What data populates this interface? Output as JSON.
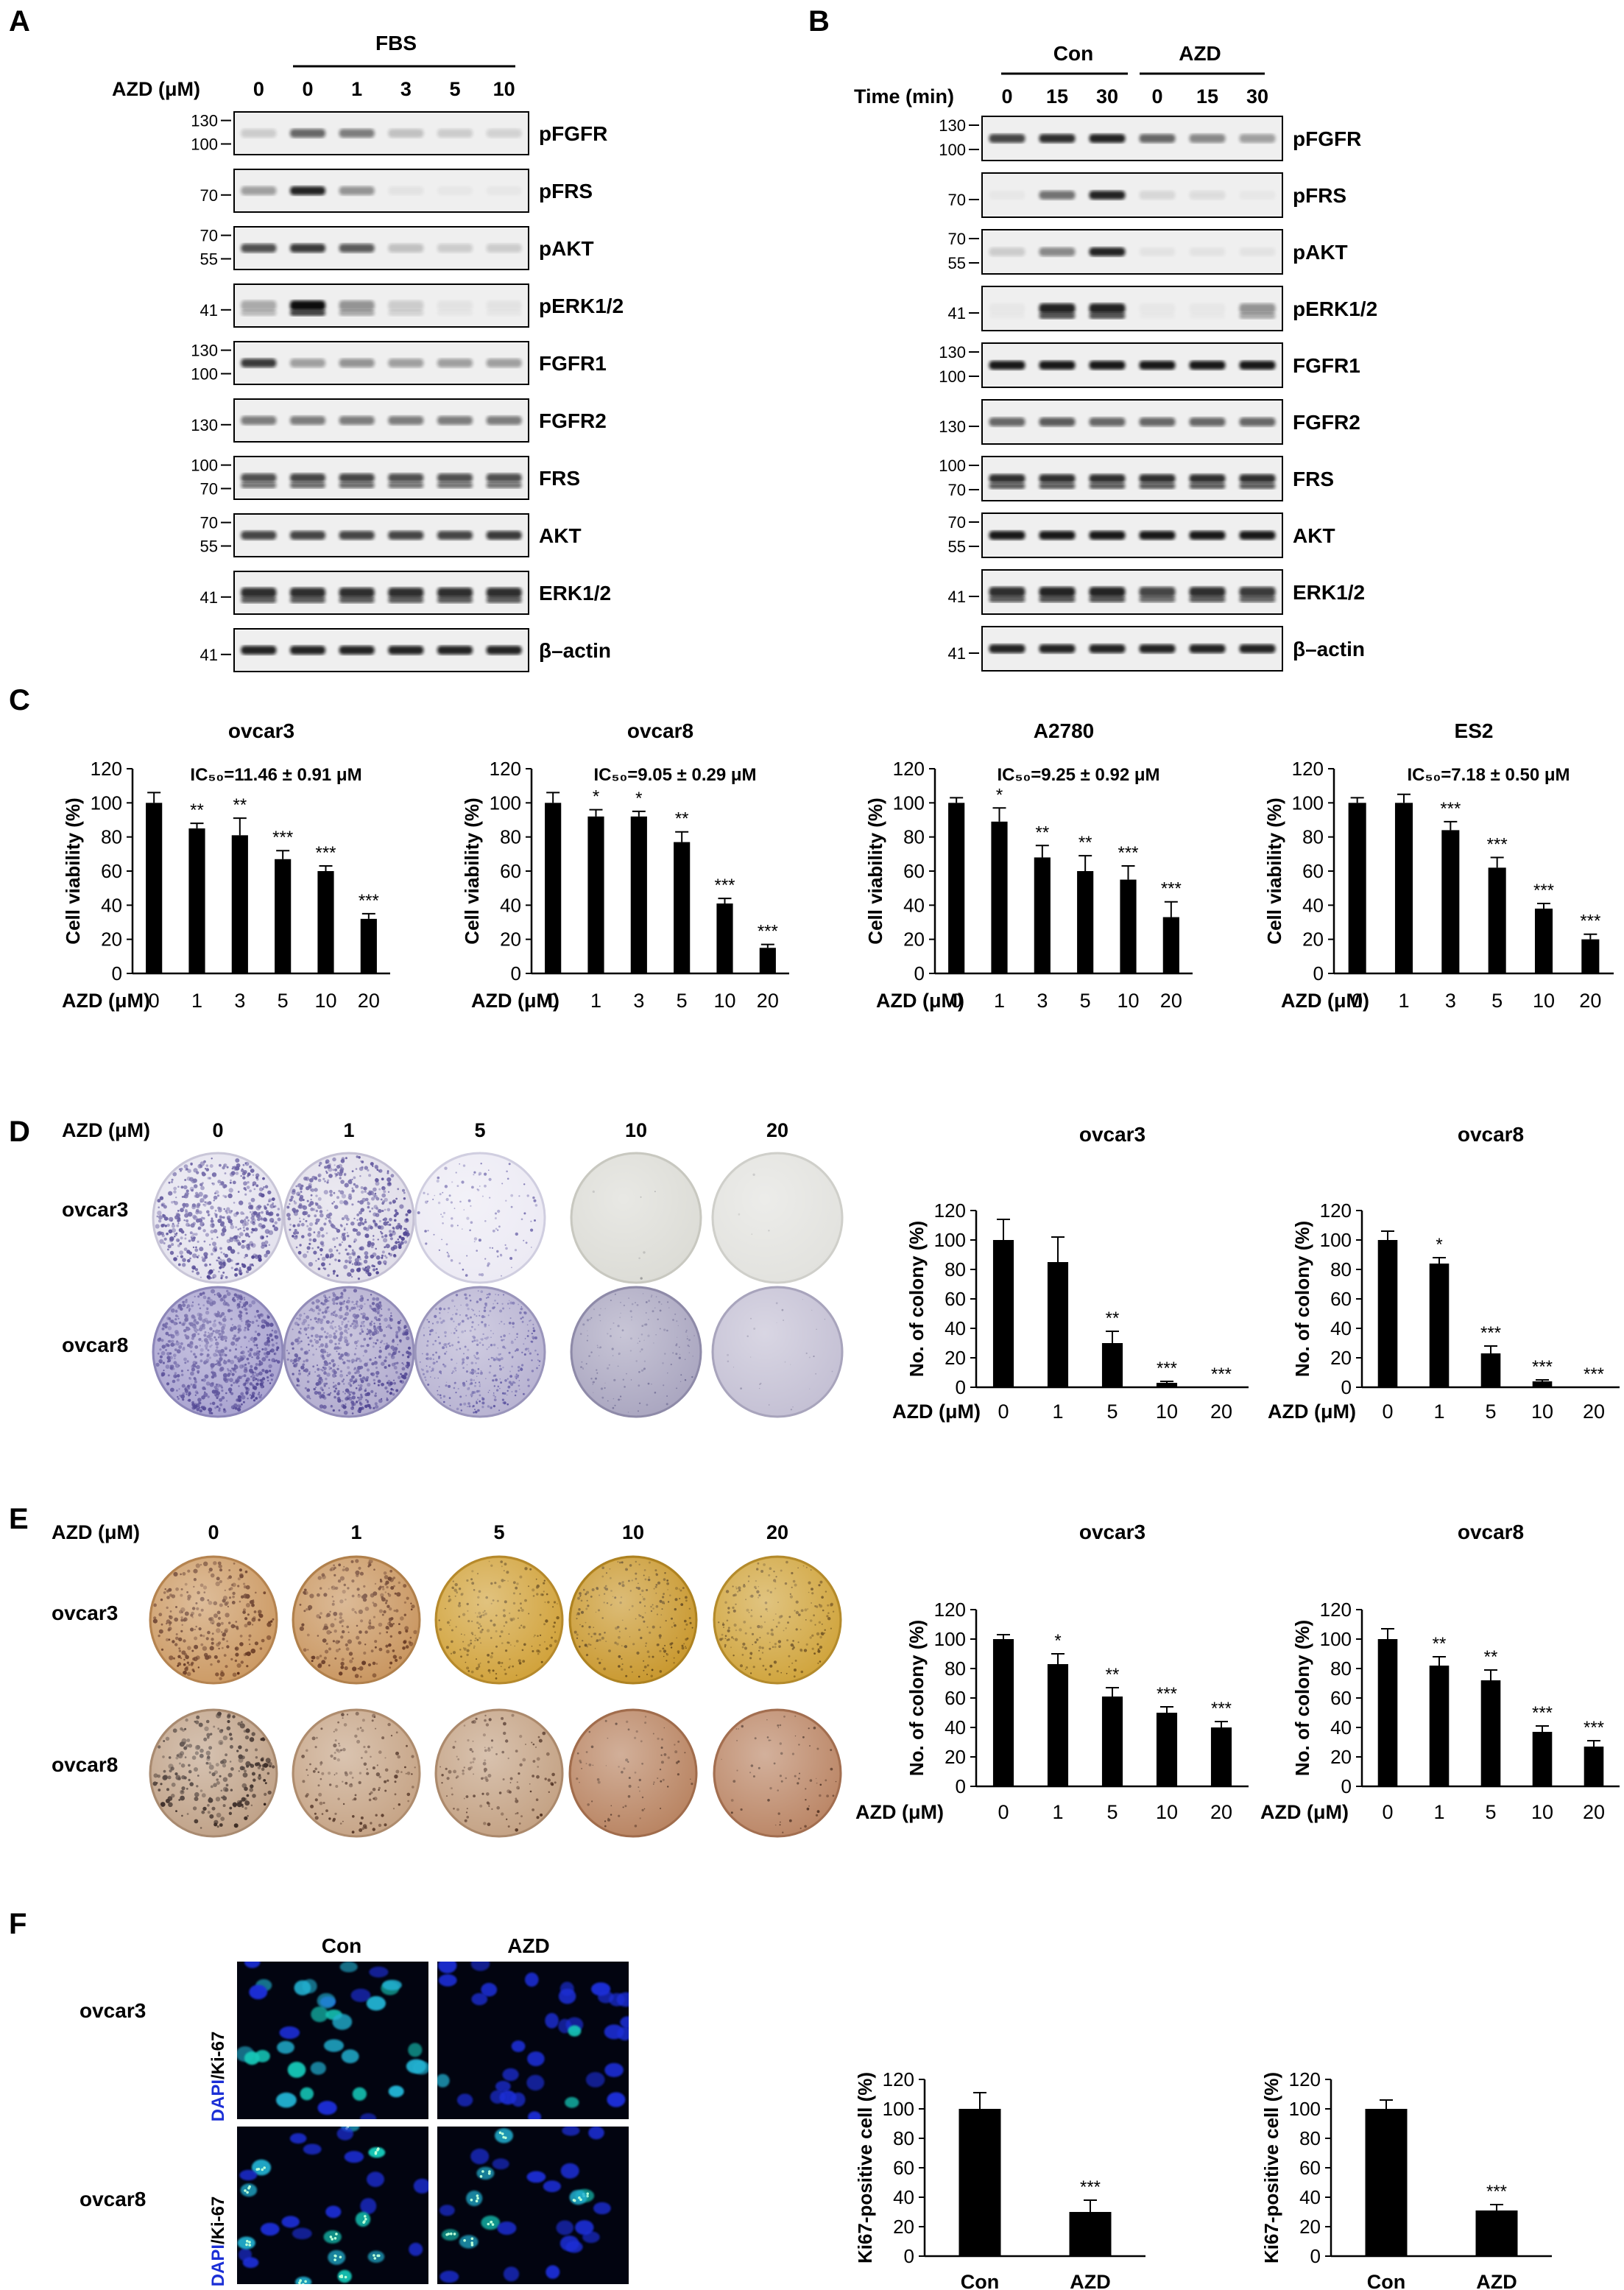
{
  "panel_letters": [
    "A",
    "B",
    "C",
    "D",
    "E",
    "F"
  ],
  "colors": {
    "ink": "#000000",
    "blot_bg": "#eeeeee",
    "band": "#1a1a1a",
    "dapi": "#1b2fd6",
    "ki67": "#18c8a8",
    "crystal": "#6a5ea8",
    "agar": "#c9975e"
  },
  "icons": {
    "blot": "western-blot-band-icon",
    "plate": "culture-dish-icon",
    "microscopy": "fluorescence-image-icon"
  },
  "panelA": {
    "fbs_label": "FBS",
    "azd_label": "AZD (μM)",
    "lanes": [
      "0",
      "0",
      "1",
      "3",
      "5",
      "10"
    ],
    "blots": [
      {
        "name": "pFGFR",
        "markers": [
          "130",
          "100"
        ]
      },
      {
        "name": "pFRS",
        "markers": [
          "70"
        ]
      },
      {
        "name": "pAKT",
        "markers": [
          "70",
          "55"
        ]
      },
      {
        "name": "pERK1/2",
        "markers": [
          "41"
        ]
      },
      {
        "name": "FGFR1",
        "markers": [
          "130",
          "100"
        ]
      },
      {
        "name": "FGFR2",
        "markers": [
          "130"
        ]
      },
      {
        "name": "FRS",
        "markers": [
          "100",
          "70"
        ]
      },
      {
        "name": "AKT",
        "markers": [
          "70",
          "55"
        ]
      },
      {
        "name": "ERK1/2",
        "markers": [
          "41"
        ]
      },
      {
        "name": "β–actin",
        "markers": [
          "41"
        ]
      }
    ]
  },
  "panelB": {
    "groups": [
      "Con",
      "AZD"
    ],
    "time_label": "Time (min)",
    "lanes": [
      "0",
      "15",
      "30",
      "0",
      "15",
      "30"
    ],
    "blots": [
      {
        "name": "pFGFR",
        "markers": [
          "130",
          "100"
        ]
      },
      {
        "name": "pFRS",
        "markers": [
          "70"
        ]
      },
      {
        "name": "pAKT",
        "markers": [
          "70",
          "55"
        ]
      },
      {
        "name": "pERK1/2",
        "markers": [
          "41"
        ]
      },
      {
        "name": "FGFR1",
        "markers": [
          "130",
          "100"
        ]
      },
      {
        "name": "FGFR2",
        "markers": [
          "130"
        ]
      },
      {
        "name": "FRS",
        "markers": [
          "100",
          "70"
        ]
      },
      {
        "name": "AKT",
        "markers": [
          "70",
          "55"
        ]
      },
      {
        "name": "ERK1/2",
        "markers": [
          "41"
        ]
      },
      {
        "name": "β–actin",
        "markers": [
          "41"
        ]
      }
    ]
  },
  "panelD": {
    "azd_label": "AZD (μM)",
    "doses": [
      "0",
      "1",
      "5",
      "10",
      "20"
    ],
    "rows": [
      "ovcar3",
      "ovcar8"
    ]
  },
  "panelE": {
    "azd_label": "AZD (μM)",
    "doses": [
      "0",
      "1",
      "5",
      "10",
      "20"
    ],
    "rows": [
      "ovcar3",
      "ovcar8"
    ]
  },
  "panelF": {
    "conditions": [
      "Con",
      "AZD"
    ],
    "rows": [
      "ovcar3",
      "ovcar8"
    ],
    "stain_dapi": "DAPI",
    "stain_ki": "/Ki-67"
  },
  "chart_data": [
    {
      "id": "C1",
      "type": "bar",
      "title": "ovcar3",
      "annotation": "IC₅₀=11.46 ± 0.91 μM",
      "ylabel": "Cell viability (%)",
      "xlabel": "AZD (μM)",
      "categories": [
        "0",
        "1",
        "3",
        "5",
        "10",
        "20"
      ],
      "values": [
        100,
        85,
        81,
        67,
        60,
        32
      ],
      "errors": [
        6,
        3,
        10,
        5,
        3,
        3
      ],
      "significance": [
        "",
        "**",
        "**",
        "***",
        "***",
        "***"
      ],
      "ylim": [
        0,
        120
      ],
      "yticks": [
        0,
        20,
        40,
        60,
        80,
        100,
        120
      ]
    },
    {
      "id": "C2",
      "type": "bar",
      "title": "ovcar8",
      "annotation": "IC₅₀=9.05 ± 0.29 μM",
      "ylabel": "Cell viability (%)",
      "xlabel": "AZD (μM)",
      "categories": [
        "0",
        "1",
        "3",
        "5",
        "10",
        "20"
      ],
      "values": [
        100,
        92,
        92,
        77,
        41,
        15
      ],
      "errors": [
        6,
        4,
        3,
        6,
        3,
        2
      ],
      "significance": [
        "",
        "*",
        "*",
        "**",
        "***",
        "***"
      ],
      "ylim": [
        0,
        120
      ],
      "yticks": [
        0,
        20,
        40,
        60,
        80,
        100,
        120
      ]
    },
    {
      "id": "C3",
      "type": "bar",
      "title": "A2780",
      "annotation": "IC₅₀=9.25 ± 0.92 μM",
      "ylabel": "Cell viability (%)",
      "xlabel": "AZD (μM)",
      "categories": [
        "0",
        "1",
        "3",
        "5",
        "10",
        "20"
      ],
      "values": [
        100,
        89,
        68,
        60,
        55,
        33
      ],
      "errors": [
        3,
        8,
        7,
        9,
        8,
        9
      ],
      "significance": [
        "",
        "*",
        "**",
        "**",
        "***",
        "***"
      ],
      "ylim": [
        0,
        120
      ],
      "yticks": [
        0,
        20,
        40,
        60,
        80,
        100,
        120
      ]
    },
    {
      "id": "C4",
      "type": "bar",
      "title": "ES2",
      "annotation": "IC₅₀=7.18 ± 0.50 μM",
      "ylabel": "Cell viability (%)",
      "xlabel": "AZD (μM)",
      "categories": [
        "0",
        "1",
        "3",
        "5",
        "10",
        "20"
      ],
      "values": [
        100,
        100,
        84,
        62,
        38,
        20
      ],
      "errors": [
        3,
        5,
        5,
        6,
        3,
        3
      ],
      "significance": [
        "",
        "",
        "***",
        "***",
        "***",
        "***"
      ],
      "ylim": [
        0,
        120
      ],
      "yticks": [
        0,
        20,
        40,
        60,
        80,
        100,
        120
      ]
    },
    {
      "id": "D1",
      "type": "bar",
      "title": "ovcar3",
      "ylabel": "No. of colony  (%)",
      "xlabel": "AZD (μM)",
      "categories": [
        "0",
        "1",
        "5",
        "10",
        "20"
      ],
      "values": [
        100,
        85,
        30,
        3,
        0
      ],
      "errors": [
        14,
        17,
        8,
        1,
        0
      ],
      "significance": [
        "",
        "",
        "**",
        "***",
        "***"
      ],
      "ylim": [
        0,
        120
      ],
      "yticks": [
        0,
        20,
        40,
        60,
        80,
        100,
        120
      ]
    },
    {
      "id": "D2",
      "type": "bar",
      "title": "ovcar8",
      "ylabel": "No. of colony  (%)",
      "xlabel": "AZD (μM)",
      "categories": [
        "0",
        "1",
        "5",
        "10",
        "20"
      ],
      "values": [
        100,
        84,
        23,
        4,
        0
      ],
      "errors": [
        6,
        4,
        5,
        1,
        0
      ],
      "significance": [
        "",
        "*",
        "***",
        "***",
        "***"
      ],
      "ylim": [
        0,
        120
      ],
      "yticks": [
        0,
        20,
        40,
        60,
        80,
        100,
        120
      ]
    },
    {
      "id": "E1",
      "type": "bar",
      "title": "ovcar3",
      "ylabel": "No. of colony  (%)",
      "xlabel": "AZD (μM)",
      "categories": [
        "0",
        "1",
        "5",
        "10",
        "20"
      ],
      "values": [
        100,
        83,
        61,
        50,
        40
      ],
      "errors": [
        3,
        7,
        6,
        4,
        4
      ],
      "significance": [
        "",
        "*",
        "**",
        "***",
        "***"
      ],
      "ylim": [
        0,
        120
      ],
      "yticks": [
        0,
        20,
        40,
        60,
        80,
        100,
        120
      ]
    },
    {
      "id": "E2",
      "type": "bar",
      "title": "ovcar8",
      "ylabel": "No. of colony  (%)",
      "xlabel": "AZD (μM)",
      "categories": [
        "0",
        "1",
        "5",
        "10",
        "20"
      ],
      "values": [
        100,
        82,
        72,
        37,
        27
      ],
      "errors": [
        7,
        6,
        7,
        4,
        4
      ],
      "significance": [
        "",
        "**",
        "**",
        "***",
        "***"
      ],
      "ylim": [
        0,
        120
      ],
      "yticks": [
        0,
        20,
        40,
        60,
        80,
        100,
        120
      ]
    },
    {
      "id": "F1",
      "type": "bar",
      "title": "",
      "ylabel": "Ki67-positive cell (%)",
      "xlabel": "",
      "categories": [
        "Con",
        "AZD"
      ],
      "values": [
        100,
        30
      ],
      "errors": [
        11,
        8
      ],
      "significance": [
        "",
        "***"
      ],
      "ylim": [
        0,
        120
      ],
      "yticks": [
        0,
        20,
        40,
        60,
        80,
        100,
        120
      ]
    },
    {
      "id": "F2",
      "type": "bar",
      "title": "",
      "ylabel": "Ki67-positive cell (%)",
      "xlabel": "",
      "categories": [
        "Con",
        "AZD"
      ],
      "values": [
        100,
        31
      ],
      "errors": [
        6,
        4
      ],
      "significance": [
        "",
        "***"
      ],
      "ylim": [
        0,
        120
      ],
      "yticks": [
        0,
        20,
        40,
        60,
        80,
        100,
        120
      ]
    }
  ]
}
